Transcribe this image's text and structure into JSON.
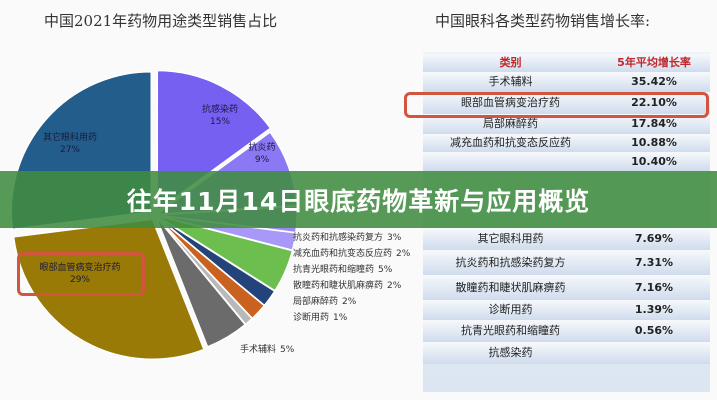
{
  "banner": {
    "title": "往年11月14日眼底药物革新与应用概览"
  },
  "chart_data": [
    {
      "type": "pie",
      "title": "中国2021年药物用途类型销售占比",
      "categories": [
        "抗感染药",
        "抗炎药",
        "抗炎药和抗感染药复方",
        "减充血药和抗变态反应药",
        "抗青光眼药和缩瞳药",
        "散瞳药和睫状肌麻痹药",
        "局部麻醉药",
        "诊断用药",
        "手术辅料",
        "眼部血管病变治疗药",
        "其它眼科用药"
      ],
      "values": [
        15,
        9,
        3,
        2,
        5,
        2,
        2,
        1,
        5,
        29,
        27
      ],
      "labels": [
        "15%",
        "9%",
        "3%",
        "2%",
        "5%",
        "2%",
        "2%",
        "1%",
        "5%",
        "29%",
        "27%"
      ],
      "colors": [
        "#7560f2",
        "#8a78f5",
        "#9a8af6",
        "#a898f7",
        "#6cbf4f",
        "#24437a",
        "#c8621e",
        "#b9b9b9",
        "#6b6b6b",
        "#9a7a06",
        "#225d8c"
      ],
      "highlighted": "眼部血管病变治疗药"
    },
    {
      "type": "table",
      "title": "中国眼科各类型药物销售增长率:",
      "columns": [
        "类别",
        "5年平均增长率"
      ],
      "rows": [
        [
          "手术辅料",
          "35.42%"
        ],
        [
          "眼部血管病变治疗药",
          "22.10%"
        ],
        [
          "局部麻醉药",
          "17.84%"
        ],
        [
          "减充血药和抗变态反应药",
          "10.88%"
        ],
        [
          "",
          "10.40%"
        ],
        [
          "其它眼科用药",
          "7.69%"
        ],
        [
          "抗炎药和抗感染药复方",
          "7.31%"
        ],
        [
          "散瞳药和睫状肌麻痹药",
          "7.16%"
        ],
        [
          "诊断用药",
          "1.39%"
        ],
        [
          "抗青光眼药和缩瞳药",
          "0.56%"
        ],
        [
          "抗感染药",
          ""
        ]
      ],
      "highlighted": "眼部血管病变治疗药"
    }
  ]
}
